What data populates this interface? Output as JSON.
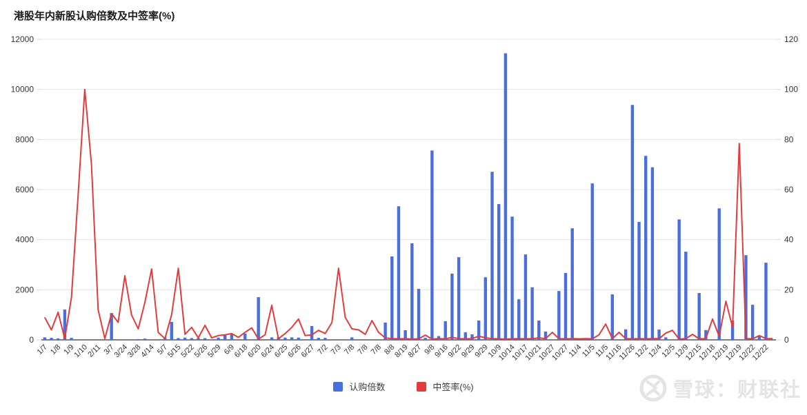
{
  "title": "港股年内新股认购倍数及中签率(%)",
  "colors": {
    "bar": "#4a6edc",
    "line": "#e23b3c",
    "grid": "#e4e4e4",
    "axis_line": "#555555",
    "tick": "#d9d9d9",
    "axis_text": "#333333",
    "title_text": "#1b1b1b",
    "watermark": "#e4e4e6"
  },
  "legend": {
    "items": [
      {
        "label": "认购倍数",
        "color_key": "bar"
      },
      {
        "label": "中签率(%)",
        "color_key": "line"
      }
    ]
  },
  "watermark": {
    "text": "雪球：财联社"
  },
  "chart_data": {
    "type": "bar",
    "combo": "bar+line",
    "title": "港股年内新股认购倍数及中签率(%)",
    "xlabel": "",
    "ylabel_left": "认购倍数",
    "ylabel_right": "中签率(%)",
    "grid": true,
    "legend_position": "bottom",
    "left_axis": {
      "range": [
        0,
        12000
      ],
      "ticks": [
        0,
        2000,
        4000,
        6000,
        8000,
        10000,
        12000
      ]
    },
    "right_axis": {
      "range": [
        0,
        120
      ],
      "ticks": [
        0,
        20,
        40,
        60,
        80,
        100,
        120
      ]
    },
    "x_tick_labels": [
      "1/7",
      "1/8",
      "1/9",
      "1/10",
      "2/11",
      "3/7",
      "3/24",
      "3/28",
      "4/14",
      "5/7",
      "5/15",
      "5/22",
      "5/26",
      "5/29",
      "6/9",
      "6/18",
      "6/20",
      "6/24",
      "6/25",
      "6/26",
      "6/27",
      "7/2",
      "7/3",
      "7/8",
      "7/8",
      "7/8",
      "8/8",
      "8/19",
      "8/27",
      "9/8",
      "9/16",
      "9/22",
      "9/29",
      "9/29",
      "10/9",
      "10/14",
      "10/17",
      "10/21",
      "10/27",
      "10/27",
      "11/4",
      "11/5",
      "11/5",
      "11/16",
      "11/26",
      "12/2",
      "12/4",
      "12/5",
      "12/9",
      "12/15",
      "12/18",
      "12/19",
      "12/19",
      "12/22",
      "12/22"
    ],
    "categories": [
      "1/7",
      "",
      "1/8",
      "",
      "1/9",
      "",
      "1/10",
      "",
      "2/11",
      "",
      "3/7",
      "",
      "3/24",
      "",
      "3/28",
      "",
      "4/14",
      "",
      "5/7",
      "",
      "5/15",
      "",
      "5/22",
      "",
      "5/26",
      "",
      "5/29",
      "",
      "6/9",
      "",
      "6/18",
      "",
      "6/20",
      "",
      "6/24",
      "",
      "6/25",
      "",
      "6/26",
      "",
      "6/27",
      "",
      "7/2",
      "",
      "7/3",
      "",
      "7/8",
      "",
      "7/8",
      "",
      "7/8",
      "",
      "8/8",
      "",
      "8/19",
      "",
      "8/27",
      "",
      "9/8",
      "",
      "9/16",
      "",
      "9/22",
      "",
      "9/29",
      "",
      "9/29",
      "",
      "10/9",
      "",
      "10/14",
      "",
      "10/17",
      "",
      "10/21",
      "",
      "10/27",
      "",
      "10/27",
      "",
      "11/4",
      "",
      "11/5",
      "",
      "11/5",
      "",
      "11/16",
      "",
      "11/26",
      "",
      "12/2",
      "",
      "12/4",
      "",
      "12/5",
      "",
      "12/9",
      "",
      "12/15",
      "",
      "12/18",
      "",
      "12/19",
      "",
      "12/19",
      "",
      "12/22",
      "",
      "12/22",
      ""
    ],
    "series": [
      {
        "name": "认购倍数",
        "type": "bar",
        "axis": "left",
        "values": [
          100,
          80,
          60,
          1210,
          80,
          0,
          0,
          0,
          0,
          0,
          1070,
          0,
          0,
          0,
          30,
          50,
          0,
          0,
          100,
          715,
          70,
          90,
          70,
          70,
          70,
          0,
          90,
          220,
          220,
          0,
          250,
          0,
          1705,
          0,
          100,
          100,
          90,
          100,
          90,
          0,
          550,
          80,
          80,
          0,
          0,
          0,
          100,
          0,
          0,
          0,
          0,
          690,
          3330,
          5335,
          385,
          3855,
          2035,
          80,
          7560,
          150,
          745,
          2645,
          3300,
          300,
          220,
          770,
          2500,
          6710,
          5420,
          11440,
          4920,
          1620,
          3410,
          2100,
          770,
          330,
          0,
          1950,
          2670,
          4455,
          0,
          0,
          6245,
          0,
          0,
          1815,
          0,
          420,
          9380,
          4710,
          7345,
          6890,
          410,
          100,
          0,
          4810,
          3520,
          0,
          1870,
          390,
          0,
          5250,
          0,
          770,
          0,
          3380,
          1400,
          170,
          3080,
          0
        ]
      },
      {
        "name": "中签率(%)",
        "type": "line",
        "axis": "right",
        "values": [
          9,
          4,
          11,
          0.5,
          17,
          58,
          100,
          70,
          12,
          0.5,
          10.5,
          7,
          25.6,
          10,
          4.4,
          15,
          28.3,
          3,
          0.5,
          10,
          28.6,
          2.2,
          5,
          0.8,
          5.8,
          0.8,
          1.7,
          2,
          2.5,
          1,
          3,
          4.8,
          0.3,
          2,
          13.8,
          0.5,
          2.5,
          5,
          8.3,
          1.7,
          2,
          3.8,
          2.5,
          6.9,
          28.6,
          9,
          4.4,
          4,
          2.2,
          7.7,
          3,
          0.8,
          0.5,
          0.4,
          0.5,
          0.3,
          0.4,
          1.9,
          0.3,
          0.5,
          0.4,
          1,
          0.5,
          0.4,
          0.5,
          1.5,
          0.8,
          0.5,
          0.4,
          0.3,
          0.4,
          0.5,
          0.4,
          0.5,
          0.8,
          0.5,
          3,
          0.5,
          0.4,
          0.5,
          0.4,
          0.5,
          0.4,
          2,
          6.3,
          0.5,
          3,
          0.5,
          0.4,
          0.5,
          0.4,
          0.5,
          0.5,
          2.7,
          3.8,
          0.3,
          0.5,
          2.2,
          0.4,
          0.5,
          8.3,
          1.4,
          15.4,
          5,
          78.4,
          0.5,
          0.4,
          1.7,
          0.5,
          0.5
        ]
      }
    ]
  }
}
